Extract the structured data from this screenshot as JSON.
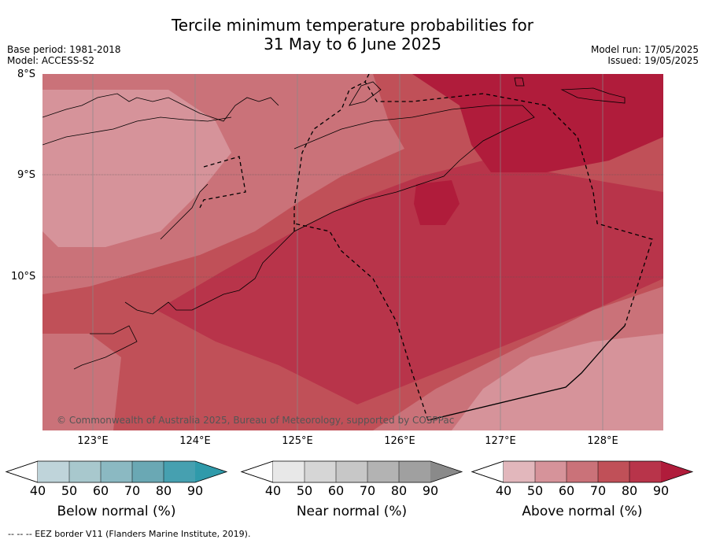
{
  "header": {
    "title_line1": "Tercile minimum temperature probabilities for",
    "title_line2": "31 May to 6 June 2025",
    "base_period": "Base period: 1981-2018",
    "model": "Model: ACCESS-S2",
    "model_run": "Model run: 17/05/2025",
    "issued": "Issued: 19/05/2025"
  },
  "map": {
    "lat_labels": [
      "8°S",
      "9°S",
      "10°S"
    ],
    "lon_labels": [
      "123°E",
      "124°E",
      "125°E",
      "126°E",
      "127°E",
      "128°E"
    ],
    "copyright": "© Commonwealth of Australia 2025, Bureau of Meteorology, supported by COSPPac"
  },
  "legend": {
    "ticks": [
      "40",
      "50",
      "60",
      "70",
      "80",
      "90"
    ],
    "below": {
      "label": "Below normal (%)",
      "colors": [
        "#bfd4da",
        "#a8c8cd",
        "#8bb9c2",
        "#6aa8b4",
        "#46a0b0",
        "#2f9aaa"
      ]
    },
    "near": {
      "label": "Near normal (%)",
      "colors": [
        "#e8e8e8",
        "#d6d6d6",
        "#c7c7c7",
        "#b3b3b3",
        "#a0a0a0",
        "#8a8a8a"
      ]
    },
    "above": {
      "label": "Above normal (%)",
      "colors": [
        "#e2b7bc",
        "#d6939a",
        "#ca7279",
        "#c05058",
        "#b8344a",
        "#b01c3b"
      ]
    }
  },
  "footer": "--  --  -- EEZ border V11 (Flanders Marine Institute, 2019)."
}
